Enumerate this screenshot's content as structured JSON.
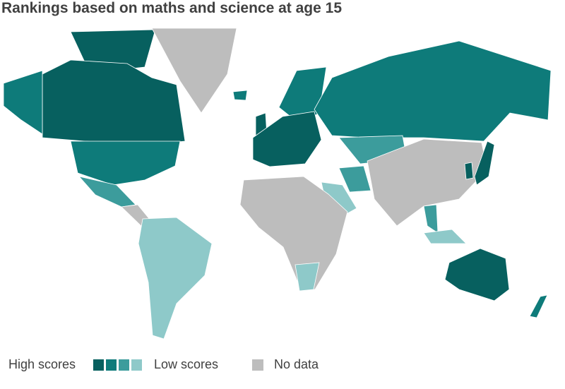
{
  "title": "Rankings based on maths and science at age 15",
  "legend": {
    "high_label": "High scores",
    "low_label": "Low scores",
    "no_data_label": "No data",
    "scale_colors": [
      "#07605f",
      "#0e7b7a",
      "#3c9c9c",
      "#8ec9c9"
    ],
    "no_data_color": "#bdbdbd"
  }
}
